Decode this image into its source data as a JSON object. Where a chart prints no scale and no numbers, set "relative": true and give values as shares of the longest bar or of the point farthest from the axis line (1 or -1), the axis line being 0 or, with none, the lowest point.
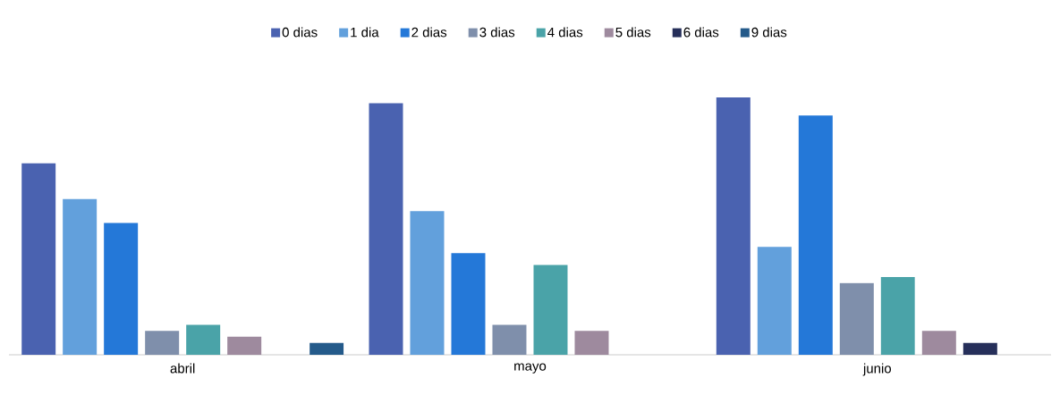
{
  "chart_data": {
    "type": "bar",
    "relative": true,
    "legend": "top",
    "categories": [
      "abril",
      "mayo",
      "junio"
    ],
    "series": [
      {
        "name": "0 dias",
        "color": "#4a62b0",
        "values": [
          0.744,
          0.977,
          1
        ]
      },
      {
        "name": "1 dia",
        "color": "#62a0dc",
        "values": [
          0.605,
          0.558,
          0.419
        ]
      },
      {
        "name": "2 dias",
        "color": "#2478d8",
        "values": [
          0.512,
          0.395,
          0.93
        ]
      },
      {
        "name": "3 dias",
        "color": "#7f8fab",
        "values": [
          0.093,
          0.116,
          0.279
        ]
      },
      {
        "name": "4 dias",
        "color": "#4aa3a8",
        "values": [
          0.116,
          0.349,
          0.302
        ]
      },
      {
        "name": "5 dias",
        "color": "#9e8a9e",
        "values": [
          0.07,
          0.093,
          0.093
        ]
      },
      {
        "name": "6 dias",
        "color": "#262f5a",
        "values": [
          null,
          null,
          0.047
        ]
      },
      {
        "name": "9 dias",
        "color": "#245a8a",
        "values": [
          0.047,
          null,
          null
        ]
      }
    ]
  }
}
